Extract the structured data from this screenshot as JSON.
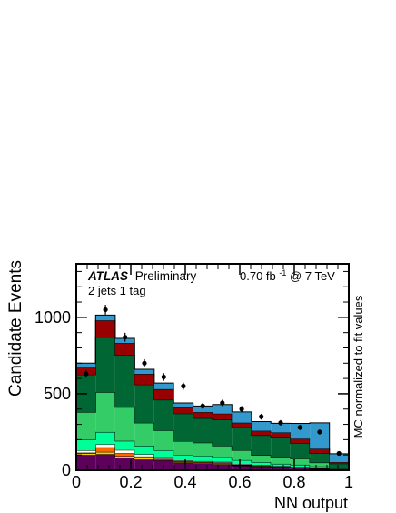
{
  "chart_data": {
    "type": "stacked-histogram",
    "xlabel": "NN output",
    "ylabel": "Candidate Events",
    "right_label": "MC normalized to fit values",
    "annotation": {
      "atlas": "ATLAS",
      "preliminary": "Preliminary",
      "selection": "2 jets 1 tag",
      "lumi_value": "0.70 fb",
      "lumi_exponent": "-1",
      "lumi_suffix": " @ 7 TeV"
    },
    "xlim": [
      0,
      1
    ],
    "ylim": [
      0,
      1350
    ],
    "x_ticks": [
      0,
      0.2,
      0.4,
      0.6,
      0.8,
      1
    ],
    "x_tick_labels": [
      "0",
      "0.2",
      "0.4",
      "0.6",
      "0.8",
      "1"
    ],
    "y_ticks": [
      0,
      500,
      1000
    ],
    "y_tick_labels": [
      "0",
      "500",
      "1000"
    ],
    "bin_edges": [
      0,
      0.071,
      0.143,
      0.214,
      0.286,
      0.357,
      0.429,
      0.5,
      0.571,
      0.643,
      0.714,
      0.786,
      0.857,
      0.929,
      1.0
    ],
    "series": [
      {
        "color": "#5c005c",
        "values": [
          100,
          105,
          80,
          70,
          65,
          50,
          45,
          40,
          30,
          25,
          20,
          15,
          10,
          5
        ]
      },
      {
        "color": "#ffcc00",
        "values": [
          10,
          15,
          12,
          10,
          5,
          5,
          5,
          5,
          3,
          3,
          2,
          2,
          2,
          1
        ]
      },
      {
        "color": "#ff6600",
        "values": [
          5,
          30,
          20,
          10,
          5,
          5,
          5,
          5,
          3,
          2,
          2,
          2,
          1,
          1
        ]
      },
      {
        "color": "#fffff0",
        "values": [
          15,
          20,
          20,
          15,
          10,
          5,
          5,
          5,
          5,
          3,
          3,
          2,
          2,
          1
        ]
      },
      {
        "color": "#00ff99",
        "values": [
          70,
          80,
          60,
          55,
          45,
          35,
          35,
          30,
          25,
          20,
          15,
          15,
          10,
          5
        ]
      },
      {
        "color": "#33cc66",
        "values": [
          180,
          260,
          220,
          150,
          130,
          90,
          85,
          75,
          65,
          45,
          45,
          40,
          25,
          10
        ]
      },
      {
        "color": "#006633",
        "values": [
          245,
          360,
          340,
          250,
          200,
          180,
          160,
          170,
          150,
          130,
          130,
          100,
          60,
          20
        ]
      },
      {
        "color": "#990000",
        "values": [
          50,
          110,
          80,
          70,
          70,
          40,
          40,
          40,
          30,
          30,
          30,
          30,
          30,
          10
        ]
      },
      {
        "color": "#3399cc",
        "values": [
          25,
          35,
          30,
          30,
          40,
          30,
          40,
          60,
          70,
          60,
          60,
          100,
          170,
          55
        ]
      }
    ],
    "data_points": {
      "x": [
        0.036,
        0.107,
        0.179,
        0.25,
        0.321,
        0.393,
        0.464,
        0.536,
        0.607,
        0.679,
        0.75,
        0.821,
        0.893,
        0.964
      ],
      "y": [
        630,
        1050,
        870,
        700,
        610,
        550,
        420,
        440,
        400,
        350,
        310,
        280,
        250,
        110
      ],
      "err": [
        25,
        32,
        29,
        26,
        25,
        23,
        20,
        21,
        20,
        19,
        18,
        17,
        16,
        11
      ]
    }
  }
}
